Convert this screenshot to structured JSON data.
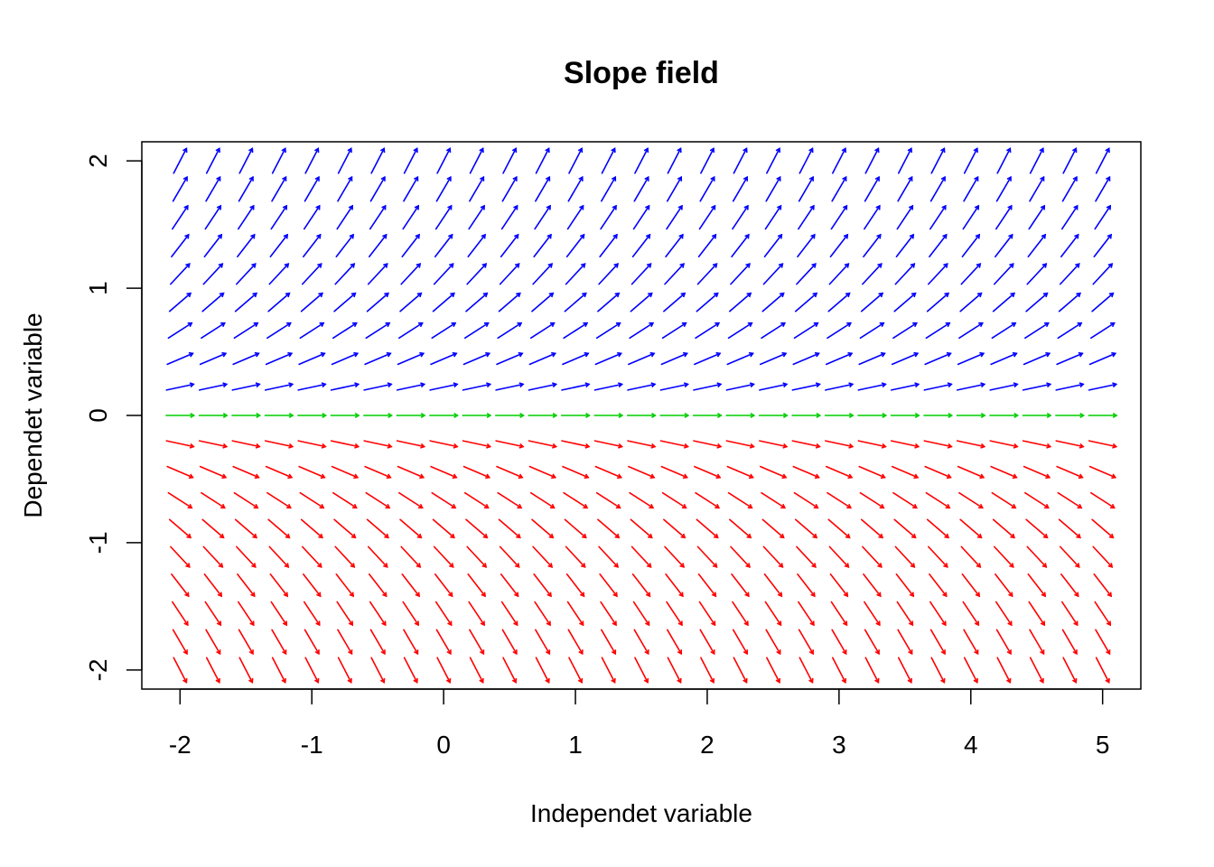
{
  "chart_data": {
    "type": "slope_field",
    "title": "Slope field",
    "xlabel": "Independet variable",
    "ylabel": "Dependet variable",
    "xlim": [
      -2.29,
      5.29
    ],
    "ylim": [
      -2.15,
      2.15
    ],
    "x_ticks": [
      "-2",
      "-1",
      "0",
      "1",
      "2",
      "3",
      "4",
      "5"
    ],
    "y_ticks": [
      "-2",
      "-1",
      "0",
      "1",
      "2"
    ],
    "grid": false,
    "legend": "none",
    "field": {
      "x_start": -2,
      "x_end": 5,
      "x_count": 29,
      "y_values": [
        -2.0,
        -1.7778,
        -1.5556,
        -1.3333,
        -1.1111,
        -0.8889,
        -0.6667,
        -0.4444,
        -0.2222,
        0.0,
        0.2222,
        0.4444,
        0.6667,
        0.8889,
        1.1111,
        1.3333,
        1.5556,
        1.7778,
        2.0
      ],
      "slope_rule": "dy/dx = y",
      "arrow_length_x": 0.21
    },
    "colors": {
      "positive": "#0000FF",
      "zero": "#00CD00",
      "negative": "#FF0000",
      "frame": "#000000"
    }
  }
}
